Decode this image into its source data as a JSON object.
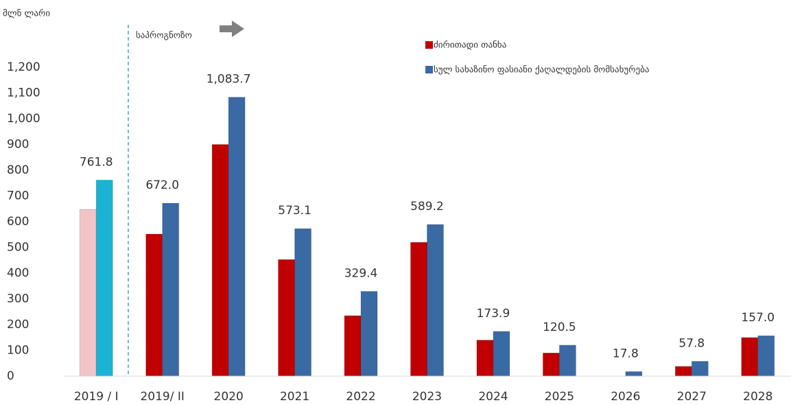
{
  "chart_data": {
    "type": "bar",
    "y_label": "მლნ ლარი",
    "annotation": "საპროგნოზო",
    "categories": [
      "2019 / I",
      "2019/ II",
      "2020",
      "2021",
      "2022",
      "2023",
      "2024",
      "2025",
      "2026",
      "2027",
      "2028"
    ],
    "series": [
      {
        "name": "ძირითადი თანხა",
        "color": "#c00000",
        "colors": [
          "#f2c4c8",
          "#c00000",
          "#c00000",
          "#c00000",
          "#c00000",
          "#c00000",
          "#c00000",
          "#c00000",
          "#c00000",
          "#c00000",
          "#c00000"
        ],
        "values": [
          648,
          552,
          900,
          453,
          235,
          520,
          140,
          90,
          0,
          38,
          150
        ]
      },
      {
        "name": "სულ სახაზინო ფასიანი ქაღალდების მომსახურება",
        "color": "#3a6aa4",
        "colors": [
          "#1bb3d3",
          "#3a6aa4",
          "#3a6aa4",
          "#3a6aa4",
          "#3a6aa4",
          "#3a6aa4",
          "#3a6aa4",
          "#3a6aa4",
          "#3a6aa4",
          "#3a6aa4",
          "#3a6aa4"
        ],
        "values": [
          761.8,
          672.0,
          1083.7,
          573.1,
          329.4,
          589.2,
          173.9,
          120.5,
          17.8,
          57.8,
          157.0
        ],
        "value_labels": [
          "761.8",
          "672.0",
          "1,083.7",
          "573.1",
          "329.4",
          "589.2",
          "173.9",
          "120.5",
          "17.8",
          "57.8",
          "157.0"
        ]
      }
    ],
    "ylim": [
      0,
      1200
    ],
    "yticks": [
      0,
      100,
      200,
      300,
      400,
      500,
      600,
      700,
      800,
      900,
      {
        "value": 1000,
        "label": "1,000"
      },
      {
        "value": 1100,
        "label": "1,100"
      },
      {
        "value": 1200,
        "label": "1,200"
      }
    ],
    "grid": false
  }
}
